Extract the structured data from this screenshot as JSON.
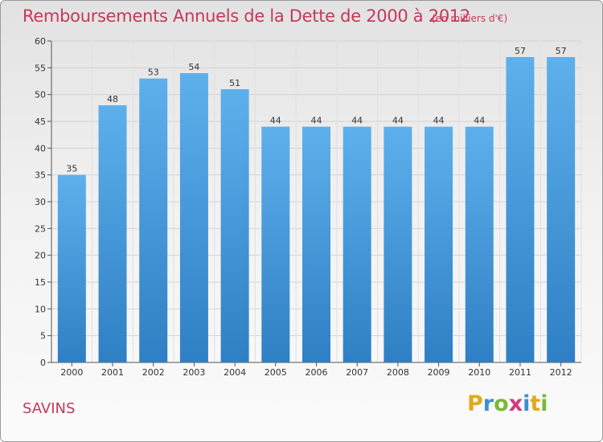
{
  "title": "Remboursements Annuels de la Dette de 2000 à 2012",
  "unit": "(en milliers d'€)",
  "place": "SAVINS",
  "logo": {
    "letters": [
      "P",
      "r",
      "o",
      "x",
      "i",
      "t",
      "i"
    ],
    "colors": [
      "#e5a81b",
      "#3f8fcf",
      "#7bb83b",
      "#d23a7a",
      "#3f8fcf",
      "#e5a81b",
      "#7bb83b"
    ]
  },
  "colors": {
    "bar": "#3f90d8",
    "bar_light": "#5aacea",
    "title": "#c8375a"
  },
  "chart_data": {
    "type": "bar",
    "title": "Remboursements Annuels de la Dette de 2000 à 2012",
    "subtitle": "(en milliers d'€)",
    "categories": [
      "2000",
      "2001",
      "2002",
      "2003",
      "2004",
      "2005",
      "2006",
      "2007",
      "2008",
      "2009",
      "2010",
      "2011",
      "2012"
    ],
    "values": [
      35,
      48,
      53,
      54,
      51,
      44,
      44,
      44,
      44,
      44,
      44,
      57,
      57
    ],
    "ylim": [
      0,
      60
    ],
    "yticks": [
      0,
      5,
      10,
      15,
      20,
      25,
      30,
      35,
      40,
      45,
      50,
      55,
      60
    ],
    "grid": true,
    "legend": "none"
  }
}
